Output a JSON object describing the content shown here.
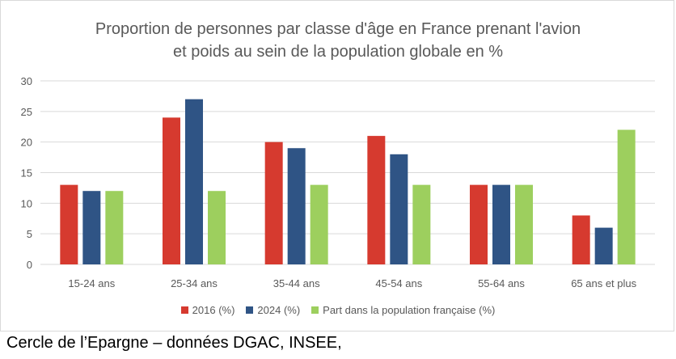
{
  "chart_data": {
    "type": "bar",
    "title": "Proportion de personnes par classe d'âge en France prenant l'avion\net poids au sein de la population globale en %",
    "categories": [
      "15-24 ans",
      "25-34 ans",
      "35-44 ans",
      "45-54 ans",
      "55-64 ans",
      "65 ans et plus"
    ],
    "series": [
      {
        "name": "2016 (%)",
        "color": "#d63a2f",
        "values": [
          13,
          24,
          20,
          21,
          13,
          8
        ]
      },
      {
        "name": "2024 (%)",
        "color": "#2f5485",
        "values": [
          12,
          27,
          19,
          18,
          13,
          6
        ]
      },
      {
        "name": "Part dans la population française (%)",
        "color": "#9dcf5e",
        "values": [
          12,
          12,
          13,
          13,
          13,
          22
        ]
      }
    ],
    "ylim": [
      0,
      30
    ],
    "yticks": [
      0,
      5,
      10,
      15,
      20,
      25,
      30
    ],
    "grid": true,
    "legend_position": "bottom",
    "xlabel": "",
    "ylabel": ""
  },
  "source": "Cercle de l’Epargne – données DGAC, INSEE,"
}
